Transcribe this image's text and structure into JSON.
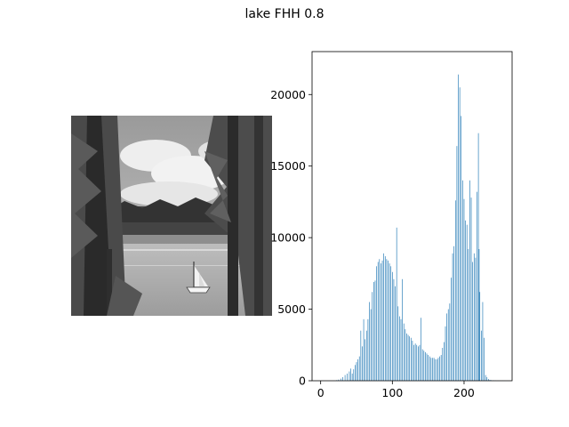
{
  "figure": {
    "title": "lake FHH 0.8"
  },
  "colors": {
    "bar": "#1f77b4",
    "axis": "#000000",
    "background": "#ffffff"
  },
  "image_panel": {
    "content": "grayscale photo of a lake with a sailboat, framed by pine trees"
  },
  "chart_data": {
    "type": "bar",
    "title": "",
    "xlabel": "",
    "ylabel": "",
    "xlim": [
      -12,
      267
    ],
    "ylim": [
      0,
      23000
    ],
    "xticks": [
      0,
      100,
      200
    ],
    "yticks": [
      0,
      5000,
      10000,
      15000,
      20000
    ],
    "x_tick_labels": [
      "0",
      "100",
      "200"
    ],
    "y_tick_labels": [
      "0",
      "5000",
      "10000",
      "15000",
      "20000"
    ],
    "grid": false,
    "x": [
      22,
      25,
      28,
      31,
      34,
      37,
      40,
      42,
      44,
      46,
      48,
      50,
      52,
      54,
      56,
      58,
      60,
      62,
      64,
      66,
      68,
      70,
      72,
      74,
      76,
      78,
      80,
      82,
      84,
      86,
      88,
      90,
      92,
      94,
      96,
      98,
      100,
      102,
      104,
      106,
      108,
      110,
      112,
      114,
      116,
      118,
      120,
      122,
      124,
      126,
      128,
      130,
      132,
      134,
      136,
      138,
      140,
      142,
      144,
      146,
      148,
      150,
      152,
      154,
      156,
      158,
      160,
      162,
      164,
      166,
      168,
      170,
      172,
      174,
      176,
      178,
      180,
      182,
      184,
      186,
      188,
      190,
      192,
      194,
      196,
      198,
      200,
      202,
      204,
      206,
      208,
      210,
      212,
      214,
      216,
      218,
      220,
      221,
      222,
      224,
      226,
      228,
      230,
      232,
      234,
      236,
      238,
      240,
      242,
      244,
      246,
      248,
      250,
      252,
      254,
      256
    ],
    "values": [
      40,
      80,
      150,
      250,
      400,
      500,
      650,
      850,
      500,
      800,
      1100,
      1300,
      1500,
      1700,
      3500,
      2400,
      4300,
      2900,
      3500,
      4300,
      5500,
      5000,
      6200,
      6900,
      7000,
      8000,
      8300,
      8500,
      8200,
      8400,
      8900,
      8700,
      8500,
      8400,
      8200,
      8000,
      7600,
      7100,
      6600,
      10700,
      5200,
      4500,
      4300,
      7100,
      4000,
      3600,
      3300,
      3200,
      3100,
      3000,
      2800,
      2500,
      2600,
      2500,
      2400,
      2500,
      4400,
      2200,
      2100,
      2000,
      1900,
      1800,
      1700,
      1600,
      1600,
      1600,
      1500,
      1500,
      1600,
      1700,
      1800,
      2300,
      2700,
      3800,
      4700,
      5000,
      5400,
      7200,
      8900,
      9400,
      12600,
      16400,
      21400,
      20500,
      18500,
      14000,
      12700,
      11200,
      10900,
      9200,
      14000,
      12800,
      8300,
      8900,
      8600,
      13200,
      17300,
      9200,
      6200,
      3500,
      5500,
      3000,
      400,
      250,
      120,
      60,
      40,
      30,
      20,
      10,
      5,
      5,
      5,
      5,
      5,
      5
    ]
  }
}
